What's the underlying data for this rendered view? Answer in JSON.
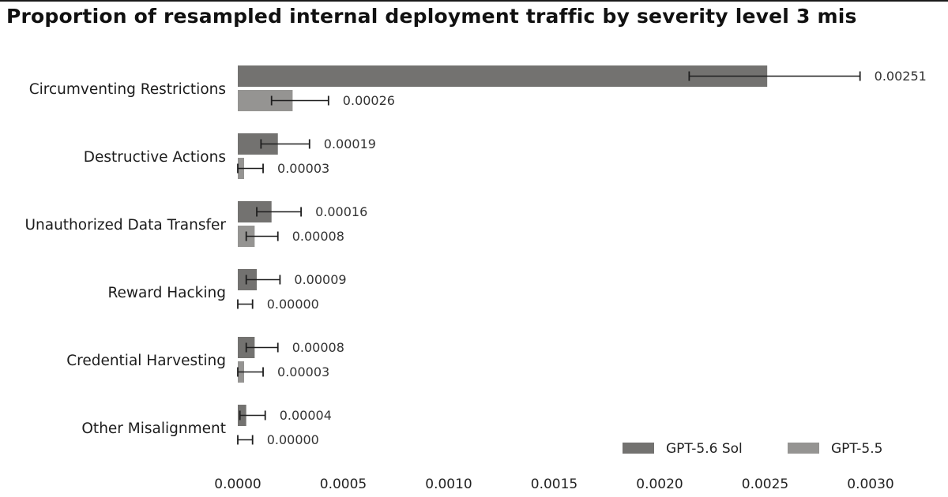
{
  "chart_data": {
    "type": "bar",
    "orientation": "horizontal",
    "title": "Proportion of resampled internal deployment traffic by severity level 3 mis",
    "categories": [
      "Circumventing Restrictions",
      "Destructive Actions",
      "Unauthorized Data Transfer",
      "Reward Hacking",
      "Credential Harvesting",
      "Other Misalignment"
    ],
    "series": [
      {
        "name": "GPT-5.6 Sol",
        "color": "#737270",
        "values": [
          0.00251,
          0.00019,
          0.00016,
          9e-05,
          8e-05,
          4e-05
        ],
        "value_labels": [
          "0.00251",
          "0.00019",
          "0.00016",
          "0.00009",
          "0.00008",
          "0.00004"
        ],
        "error_low": [
          0.00214,
          0.00011,
          9e-05,
          4e-05,
          4e-05,
          1e-05
        ],
        "error_high": [
          0.00295,
          0.00034,
          0.0003,
          0.0002,
          0.00019,
          0.00013
        ]
      },
      {
        "name": "GPT-5.5",
        "color": "#959492",
        "values": [
          0.00026,
          3e-05,
          8e-05,
          0.0,
          3e-05,
          0.0
        ],
        "value_labels": [
          "0.00026",
          "0.00003",
          "0.00008",
          "0.00000",
          "0.00003",
          "0.00000"
        ],
        "error_low": [
          0.00016,
          0.0,
          4e-05,
          0.0,
          0.0,
          0.0
        ],
        "error_high": [
          0.00043,
          0.00012,
          0.00019,
          7e-05,
          0.00012,
          7e-05
        ]
      }
    ],
    "xlim": [
      0,
      0.003
    ],
    "x_ticks": [
      "0.0000",
      "0.0005",
      "0.0010",
      "0.0015",
      "0.0020",
      "0.0025",
      "0.0030"
    ],
    "xlabel": "",
    "ylabel": "",
    "grid": false,
    "legend_position": "bottom-right"
  }
}
